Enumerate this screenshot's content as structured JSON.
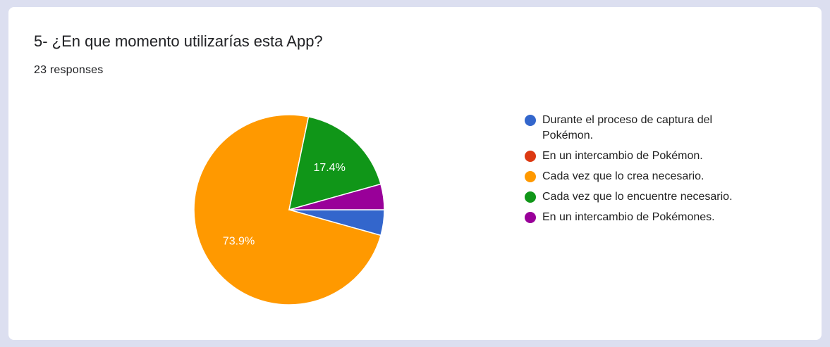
{
  "question": {
    "title": "5- ¿En que momento utilizarías esta App?",
    "responses": "23 responses"
  },
  "chart_data": {
    "type": "pie",
    "categories": [
      "Durante el proceso de captura del Pokémon.",
      "En un intercambio de Pokémon.",
      "Cada vez que lo crea necesario.",
      "Cada vez que lo encuentre necesario.",
      "En un intercambio de Pokémones."
    ],
    "values": [
      1,
      0,
      17,
      4,
      1
    ],
    "colors": [
      "#3366cc",
      "#dc3912",
      "#ff9900",
      "#109618",
      "#990099"
    ],
    "slice_labels": [
      "",
      "",
      "73.9%",
      "17.4%",
      ""
    ],
    "legend": "right"
  }
}
